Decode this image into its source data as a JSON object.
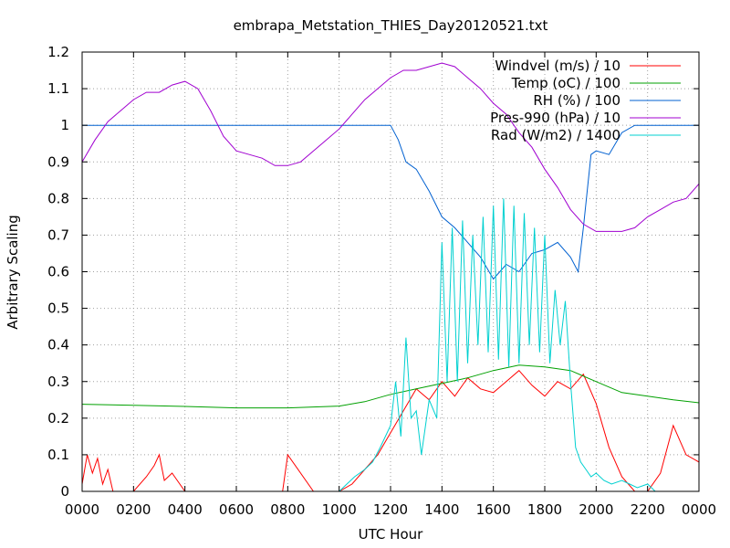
{
  "chart_data": {
    "type": "line",
    "title": "embrapa_Metstation_THIES_Day20120521.txt",
    "xlabel": "UTC Hour",
    "ylabel": "Arbitrary Scaling",
    "xlim": [
      0,
      24
    ],
    "ylim": [
      0,
      1.2
    ],
    "grid": true,
    "legend_position": "top-right",
    "x_ticks": [
      "0000",
      "0200",
      "0400",
      "0600",
      "0800",
      "1000",
      "1200",
      "1400",
      "1600",
      "1800",
      "2000",
      "2200",
      "0000"
    ],
    "y_ticks": [
      "0",
      "0.1",
      "0.2",
      "0.3",
      "0.4",
      "0.5",
      "0.6",
      "0.7",
      "0.8",
      "0.9",
      "1",
      "1.1",
      "1.2"
    ],
    "series": [
      {
        "name": "Windvel (m/s) / 10",
        "color": "#ff0000",
        "x": [
          0,
          0.2,
          0.4,
          0.6,
          0.8,
          1.0,
          1.2,
          1.5,
          2.0,
          2.5,
          2.8,
          3.0,
          3.2,
          3.5,
          4.0,
          5.0,
          6.0,
          7.0,
          7.8,
          8.0,
          9.0,
          9.5,
          10.0,
          10.5,
          11.0,
          11.5,
          12.0,
          12.5,
          13.0,
          13.5,
          14.0,
          14.5,
          15.0,
          15.5,
          16.0,
          16.5,
          17.0,
          17.5,
          18.0,
          18.5,
          19.0,
          19.5,
          20.0,
          20.5,
          21.0,
          21.5,
          22.0,
          22.5,
          23.0,
          23.5,
          24.0
        ],
        "y": [
          0.02,
          0.1,
          0.05,
          0.09,
          0.02,
          0.06,
          0,
          0,
          0,
          0.04,
          0.07,
          0.1,
          0.03,
          0.05,
          0,
          0,
          0,
          0,
          0,
          0.1,
          0,
          0,
          0,
          0.02,
          0.06,
          0.1,
          0.16,
          0.22,
          0.28,
          0.25,
          0.3,
          0.26,
          0.31,
          0.28,
          0.27,
          0.3,
          0.33,
          0.29,
          0.26,
          0.3,
          0.28,
          0.32,
          0.24,
          0.12,
          0.04,
          0,
          0,
          0.05,
          0.18,
          0.1,
          0.08
        ]
      },
      {
        "name": "Temp (oC) / 100",
        "color": "#00a000",
        "x": [
          0,
          2,
          4,
          6,
          8,
          10,
          11,
          12,
          13,
          14,
          15,
          16,
          17,
          18,
          19,
          20,
          21,
          22,
          23,
          24
        ],
        "y": [
          0.238,
          0.235,
          0.232,
          0.228,
          0.228,
          0.233,
          0.245,
          0.265,
          0.28,
          0.295,
          0.31,
          0.33,
          0.345,
          0.34,
          0.33,
          0.3,
          0.27,
          0.26,
          0.25,
          0.242
        ]
      },
      {
        "name": "RH (%) / 100",
        "color": "#0060d0",
        "x": [
          0,
          2,
          4,
          6,
          8,
          10,
          11,
          12,
          12.3,
          12.6,
          13,
          13.5,
          14,
          14.5,
          15,
          15.5,
          16,
          16.5,
          17,
          17.5,
          18,
          18.5,
          19,
          19.3,
          19.5,
          19.8,
          20,
          20.5,
          21,
          21.5,
          22,
          23,
          24
        ],
        "y": [
          1,
          1,
          1,
          1,
          1,
          1,
          1,
          1,
          0.96,
          0.9,
          0.88,
          0.82,
          0.75,
          0.72,
          0.68,
          0.64,
          0.58,
          0.62,
          0.6,
          0.65,
          0.66,
          0.68,
          0.64,
          0.6,
          0.72,
          0.92,
          0.93,
          0.92,
          0.98,
          1,
          1,
          1,
          1
        ]
      },
      {
        "name": "Pres-990 (hPa) / 10",
        "color": "#a000d0",
        "x": [
          0,
          0.5,
          1,
          1.5,
          2,
          2.5,
          3,
          3.5,
          4,
          4.5,
          5,
          5.5,
          6,
          6.5,
          7,
          7.5,
          8,
          8.5,
          9,
          9.5,
          10,
          10.5,
          11,
          11.5,
          12,
          12.5,
          13,
          13.5,
          14,
          14.5,
          15,
          15.5,
          16,
          16.5,
          17,
          17.5,
          18,
          18.5,
          19,
          19.5,
          20,
          20.5,
          21,
          21.5,
          22,
          22.5,
          23,
          23.5,
          24
        ],
        "y": [
          0.9,
          0.96,
          1.01,
          1.04,
          1.07,
          1.09,
          1.09,
          1.11,
          1.12,
          1.1,
          1.04,
          0.97,
          0.93,
          0.92,
          0.91,
          0.89,
          0.89,
          0.9,
          0.93,
          0.96,
          0.99,
          1.03,
          1.07,
          1.1,
          1.13,
          1.15,
          1.15,
          1.16,
          1.17,
          1.16,
          1.13,
          1.1,
          1.06,
          1.03,
          0.98,
          0.94,
          0.88,
          0.83,
          0.77,
          0.73,
          0.71,
          0.71,
          0.71,
          0.72,
          0.75,
          0.77,
          0.79,
          0.8,
          0.84
        ]
      },
      {
        "name": "Rad (W/m2) / 1400",
        "color": "#00d0d0",
        "x": [
          0,
          10,
          10.3,
          10.6,
          11,
          11.3,
          11.6,
          12,
          12.2,
          12.4,
          12.6,
          12.8,
          13,
          13.2,
          13.5,
          13.8,
          14,
          14.2,
          14.4,
          14.6,
          14.8,
          15,
          15.2,
          15.4,
          15.6,
          15.8,
          16,
          16.2,
          16.4,
          16.6,
          16.8,
          17,
          17.2,
          17.4,
          17.6,
          17.8,
          18,
          18.2,
          18.4,
          18.6,
          18.8,
          19,
          19.2,
          19.4,
          19.6,
          19.8,
          20,
          20.3,
          20.6,
          21,
          21.3,
          21.6,
          22,
          22.3,
          24
        ],
        "y": [
          0,
          0,
          0.02,
          0.04,
          0.06,
          0.08,
          0.12,
          0.18,
          0.3,
          0.15,
          0.42,
          0.2,
          0.22,
          0.1,
          0.25,
          0.2,
          0.68,
          0.3,
          0.72,
          0.3,
          0.74,
          0.35,
          0.7,
          0.4,
          0.75,
          0.38,
          0.78,
          0.36,
          0.8,
          0.34,
          0.78,
          0.35,
          0.76,
          0.4,
          0.72,
          0.38,
          0.7,
          0.35,
          0.55,
          0.4,
          0.52,
          0.3,
          0.12,
          0.08,
          0.06,
          0.04,
          0.05,
          0.03,
          0.02,
          0.03,
          0.02,
          0.01,
          0.02,
          0,
          0
        ]
      }
    ]
  }
}
